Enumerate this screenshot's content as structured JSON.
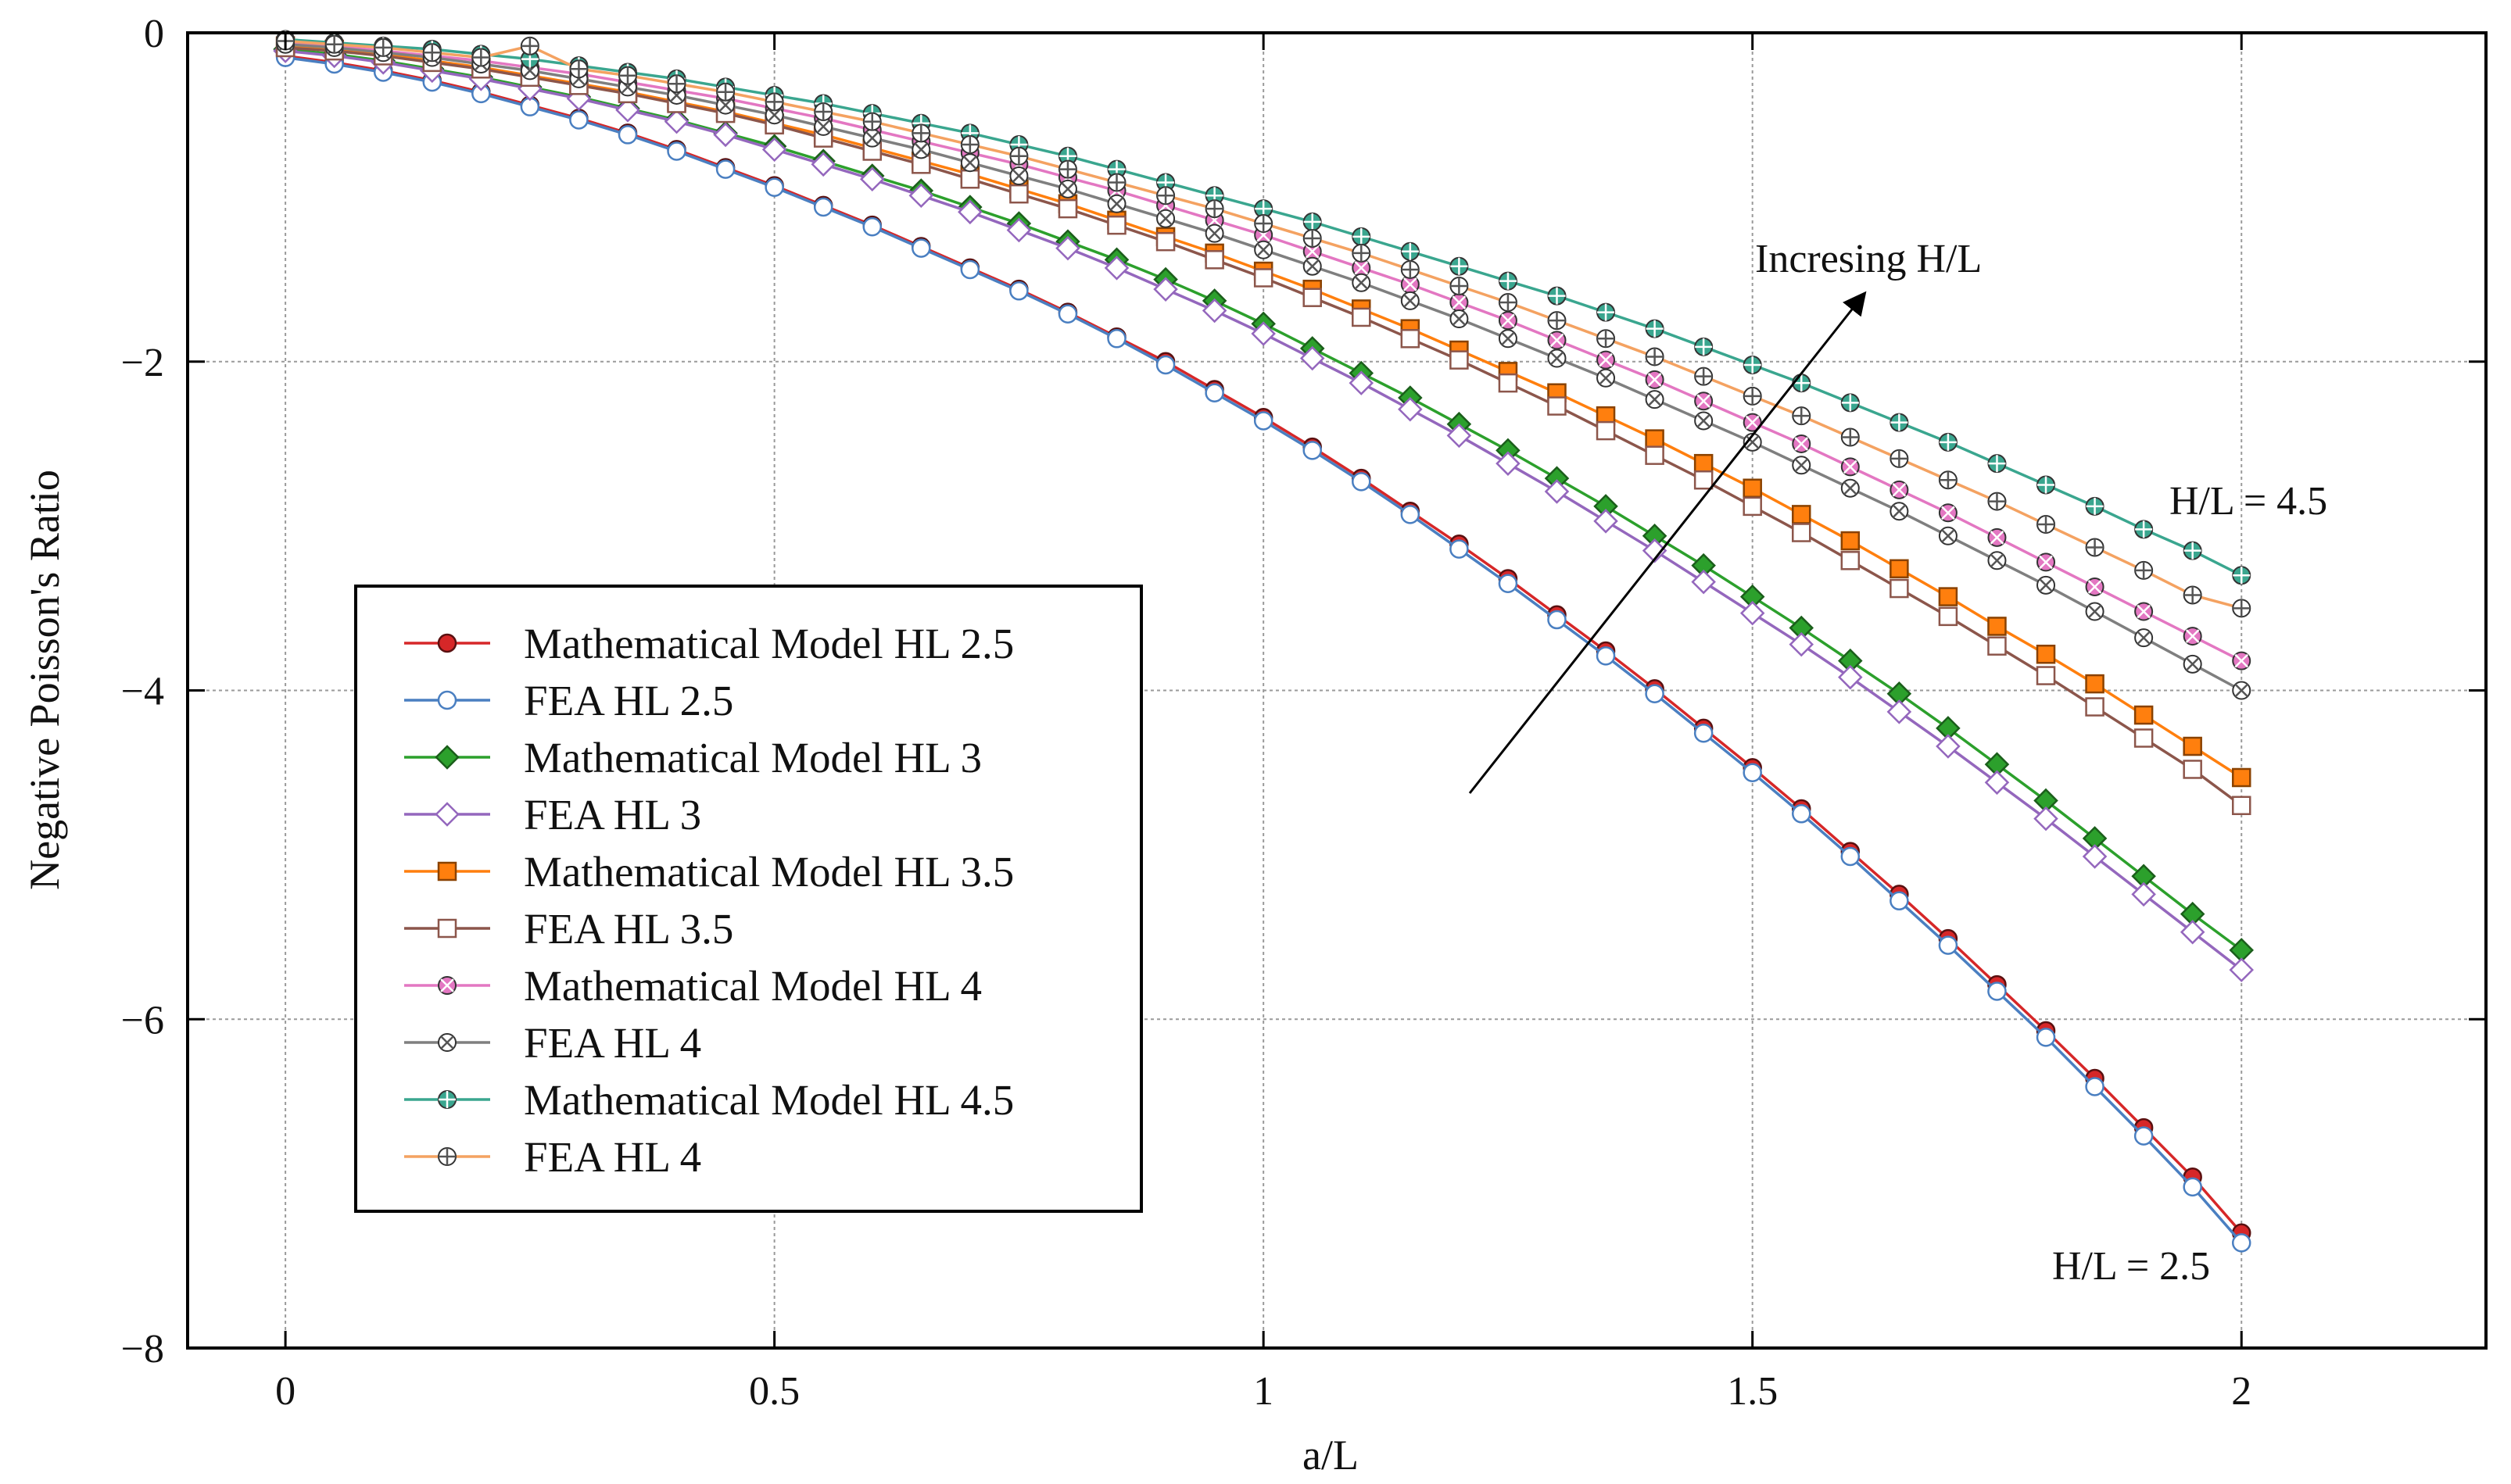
{
  "chart_data": {
    "type": "line",
    "title": "",
    "xlabel": "a/L",
    "ylabel": "Negative Poisson's Ratio",
    "xlim": [
      -0.1,
      2.25
    ],
    "ylim": [
      -8,
      0
    ],
    "xticks": [
      0,
      0.5,
      1,
      1.5,
      2
    ],
    "xtick_labels": [
      "0",
      "0.5",
      "1",
      "1.5",
      "2"
    ],
    "yticks": [
      0,
      -2,
      -4,
      -6,
      -8
    ],
    "ytick_labels": [
      "0",
      "−2",
      "−4",
      "−6",
      "−8"
    ],
    "grid": true,
    "legend_position": "lower-left",
    "x": [
      0,
      0.05,
      0.1,
      0.15,
      0.2,
      0.25,
      0.3,
      0.35,
      0.4,
      0.45,
      0.5,
      0.55,
      0.6,
      0.65,
      0.7,
      0.75,
      0.8,
      0.85,
      0.9,
      0.95,
      1,
      1.05,
      1.1,
      1.15,
      1.2,
      1.25,
      1.3,
      1.35,
      1.4,
      1.45,
      1.5,
      1.55,
      1.6,
      1.65,
      1.7,
      1.75,
      1.8,
      1.85,
      1.9,
      1.95,
      2
    ],
    "series": [
      {
        "name": "Mathematical Model HL 2.5",
        "color": "#d62728",
        "marker": "circle",
        "filled": true,
        "values": [
          -0.14,
          -0.18,
          -0.23,
          -0.29,
          -0.36,
          -0.44,
          -0.52,
          -0.61,
          -0.71,
          -0.82,
          -0.93,
          -1.05,
          -1.17,
          -1.3,
          -1.43,
          -1.56,
          -1.7,
          -1.85,
          -2.0,
          -2.17,
          -2.34,
          -2.52,
          -2.71,
          -2.91,
          -3.11,
          -3.32,
          -3.54,
          -3.76,
          -3.99,
          -4.23,
          -4.47,
          -4.72,
          -4.98,
          -5.24,
          -5.51,
          -5.79,
          -6.07,
          -6.36,
          -6.66,
          -6.96,
          -7.3
        ]
      },
      {
        "name": "FEA HL 2.5",
        "color": "#4a7fc1",
        "marker": "circle",
        "filled": false,
        "values": [
          -0.15,
          -0.19,
          -0.24,
          -0.3,
          -0.37,
          -0.45,
          -0.53,
          -0.62,
          -0.72,
          -0.83,
          -0.94,
          -1.06,
          -1.18,
          -1.31,
          -1.44,
          -1.57,
          -1.71,
          -1.86,
          -2.02,
          -2.19,
          -2.36,
          -2.54,
          -2.73,
          -2.93,
          -3.14,
          -3.35,
          -3.57,
          -3.79,
          -4.02,
          -4.26,
          -4.5,
          -4.75,
          -5.01,
          -5.28,
          -5.55,
          -5.83,
          -6.11,
          -6.41,
          -6.71,
          -7.02,
          -7.36
        ]
      },
      {
        "name": "Mathematical Model HL 3",
        "color": "#2ca02c",
        "marker": "diamond",
        "filled": true,
        "values": [
          -0.1,
          -0.13,
          -0.17,
          -0.22,
          -0.27,
          -0.33,
          -0.39,
          -0.46,
          -0.53,
          -0.61,
          -0.69,
          -0.78,
          -0.87,
          -0.96,
          -1.06,
          -1.16,
          -1.27,
          -1.38,
          -1.5,
          -1.63,
          -1.77,
          -1.92,
          -2.07,
          -2.22,
          -2.38,
          -2.54,
          -2.71,
          -2.88,
          -3.06,
          -3.24,
          -3.43,
          -3.62,
          -3.82,
          -4.02,
          -4.23,
          -4.45,
          -4.67,
          -4.9,
          -5.13,
          -5.36,
          -5.58
        ]
      },
      {
        "name": "FEA HL 3",
        "color": "#9467bd",
        "marker": "diamond",
        "filled": false,
        "values": [
          -0.11,
          -0.14,
          -0.18,
          -0.23,
          -0.28,
          -0.34,
          -0.4,
          -0.47,
          -0.54,
          -0.62,
          -0.71,
          -0.8,
          -0.89,
          -0.99,
          -1.09,
          -1.2,
          -1.31,
          -1.43,
          -1.56,
          -1.69,
          -1.83,
          -1.98,
          -2.13,
          -2.29,
          -2.45,
          -2.62,
          -2.79,
          -2.97,
          -3.15,
          -3.34,
          -3.53,
          -3.72,
          -3.92,
          -4.13,
          -4.34,
          -4.56,
          -4.78,
          -5.01,
          -5.24,
          -5.47,
          -5.7
        ]
      },
      {
        "name": "Mathematical Model HL 3.5",
        "color": "#ff7f0e",
        "marker": "square",
        "filled": true,
        "values": [
          -0.08,
          -0.1,
          -0.13,
          -0.17,
          -0.21,
          -0.26,
          -0.31,
          -0.36,
          -0.42,
          -0.48,
          -0.55,
          -0.62,
          -0.7,
          -0.78,
          -0.86,
          -0.95,
          -1.04,
          -1.14,
          -1.24,
          -1.34,
          -1.45,
          -1.56,
          -1.68,
          -1.8,
          -1.93,
          -2.06,
          -2.19,
          -2.33,
          -2.47,
          -2.62,
          -2.77,
          -2.93,
          -3.09,
          -3.26,
          -3.43,
          -3.61,
          -3.78,
          -3.96,
          -4.15,
          -4.34,
          -4.53
        ]
      },
      {
        "name": "FEA HL 3.5",
        "color": "#8c564b",
        "marker": "square",
        "filled": false,
        "values": [
          -0.09,
          -0.11,
          -0.14,
          -0.18,
          -0.22,
          -0.27,
          -0.32,
          -0.37,
          -0.43,
          -0.49,
          -0.56,
          -0.64,
          -0.72,
          -0.8,
          -0.89,
          -0.98,
          -1.07,
          -1.17,
          -1.27,
          -1.38,
          -1.49,
          -1.61,
          -1.73,
          -1.86,
          -1.99,
          -2.13,
          -2.27,
          -2.42,
          -2.57,
          -2.72,
          -2.88,
          -3.04,
          -3.21,
          -3.38,
          -3.55,
          -3.73,
          -3.91,
          -4.1,
          -4.29,
          -4.48,
          -4.7
        ]
      },
      {
        "name": "Mathematical Model HL 4",
        "color": "#e377c2",
        "marker": "x-circle",
        "filled": true,
        "values": [
          -0.06,
          -0.08,
          -0.11,
          -0.14,
          -0.17,
          -0.21,
          -0.25,
          -0.3,
          -0.35,
          -0.4,
          -0.46,
          -0.52,
          -0.59,
          -0.66,
          -0.73,
          -0.8,
          -0.88,
          -0.96,
          -1.05,
          -1.14,
          -1.23,
          -1.33,
          -1.43,
          -1.53,
          -1.64,
          -1.75,
          -1.87,
          -1.99,
          -2.11,
          -2.24,
          -2.37,
          -2.5,
          -2.64,
          -2.78,
          -2.92,
          -3.07,
          -3.22,
          -3.37,
          -3.52,
          -3.67,
          -3.82
        ]
      },
      {
        "name": "FEA HL 4",
        "color": "#7f7f7f",
        "marker": "x-circle",
        "filled": false,
        "values": [
          -0.07,
          -0.09,
          -0.12,
          -0.15,
          -0.19,
          -0.23,
          -0.28,
          -0.33,
          -0.38,
          -0.44,
          -0.5,
          -0.57,
          -0.64,
          -0.71,
          -0.79,
          -0.87,
          -0.95,
          -1.04,
          -1.13,
          -1.22,
          -1.32,
          -1.42,
          -1.52,
          -1.63,
          -1.74,
          -1.86,
          -1.98,
          -2.1,
          -2.23,
          -2.36,
          -2.49,
          -2.63,
          -2.77,
          -2.91,
          -3.06,
          -3.21,
          -3.36,
          -3.52,
          -3.68,
          -3.84,
          -4.0
        ]
      },
      {
        "name": "Mathematical Model HL 4.5",
        "color": "#3aa68f",
        "marker": "plus-circle",
        "filled": true,
        "values": [
          -0.04,
          -0.06,
          -0.08,
          -0.1,
          -0.13,
          -0.16,
          -0.2,
          -0.24,
          -0.28,
          -0.33,
          -0.38,
          -0.43,
          -0.49,
          -0.55,
          -0.61,
          -0.68,
          -0.75,
          -0.83,
          -0.91,
          -0.99,
          -1.07,
          -1.15,
          -1.24,
          -1.33,
          -1.42,
          -1.51,
          -1.6,
          -1.7,
          -1.8,
          -1.91,
          -2.02,
          -2.13,
          -2.25,
          -2.37,
          -2.49,
          -2.62,
          -2.75,
          -2.88,
          -3.02,
          -3.15,
          -3.3
        ]
      },
      {
        "name": "FEA HL 4",
        "color": "#f4a261",
        "marker": "plus-circle",
        "filled": false,
        "values": [
          -0.05,
          -0.07,
          -0.09,
          -0.12,
          -0.15,
          -0.08,
          -0.22,
          -0.26,
          -0.31,
          -0.36,
          -0.42,
          -0.48,
          -0.54,
          -0.61,
          -0.68,
          -0.75,
          -0.83,
          -0.91,
          -0.99,
          -1.07,
          -1.16,
          -1.25,
          -1.34,
          -1.44,
          -1.54,
          -1.64,
          -1.75,
          -1.86,
          -1.97,
          -2.09,
          -2.21,
          -2.33,
          -2.46,
          -2.59,
          -2.72,
          -2.85,
          -2.99,
          -3.13,
          -3.27,
          -3.42,
          -3.5
        ]
      }
    ],
    "annotations": [
      {
        "text": "Incresing H/L"
      },
      {
        "text": "H/L = 4.5"
      },
      {
        "text": "H/L = 2.5"
      }
    ]
  }
}
